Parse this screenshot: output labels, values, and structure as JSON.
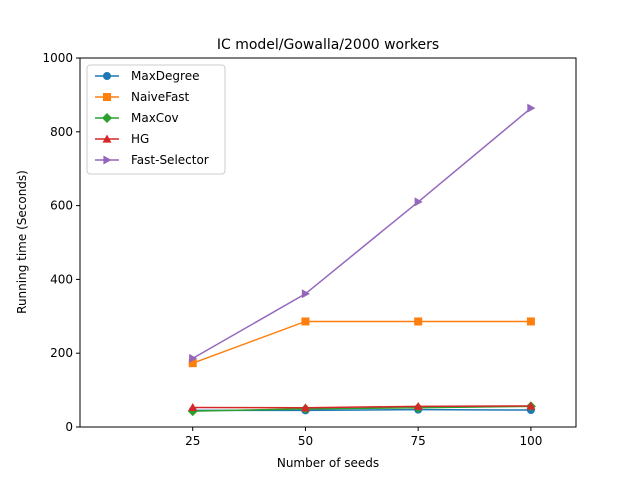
{
  "chart_data": {
    "type": "line",
    "title": "IC model/Gowalla/2000 workers",
    "xlabel": "Number of seeds",
    "ylabel": "Running time (Seconds)",
    "x": [
      25,
      50,
      75,
      100
    ],
    "xlim": [
      0,
      110
    ],
    "ylim": [
      0,
      1000
    ],
    "xticks": [
      25,
      50,
      75,
      100
    ],
    "yticks": [
      0,
      200,
      400,
      600,
      800,
      1000
    ],
    "grid": false,
    "legend_position": "top-left",
    "series": [
      {
        "name": "MaxDegree",
        "color": "#1f77b4",
        "marker": "circle",
        "values": [
          45,
          45,
          47,
          46
        ]
      },
      {
        "name": "NaiveFast",
        "color": "#ff7f0e",
        "marker": "square",
        "values": [
          173,
          286,
          286,
          286
        ]
      },
      {
        "name": "MaxCov",
        "color": "#2ca02c",
        "marker": "diamond",
        "values": [
          43,
          49,
          52,
          56
        ]
      },
      {
        "name": "HG",
        "color": "#d62728",
        "marker": "triangle-up",
        "values": [
          53,
          52,
          56,
          57
        ]
      },
      {
        "name": "Fast-Selector",
        "color": "#9467bd",
        "marker": "triangle-right",
        "values": [
          186,
          361,
          610,
          864
        ]
      }
    ]
  }
}
